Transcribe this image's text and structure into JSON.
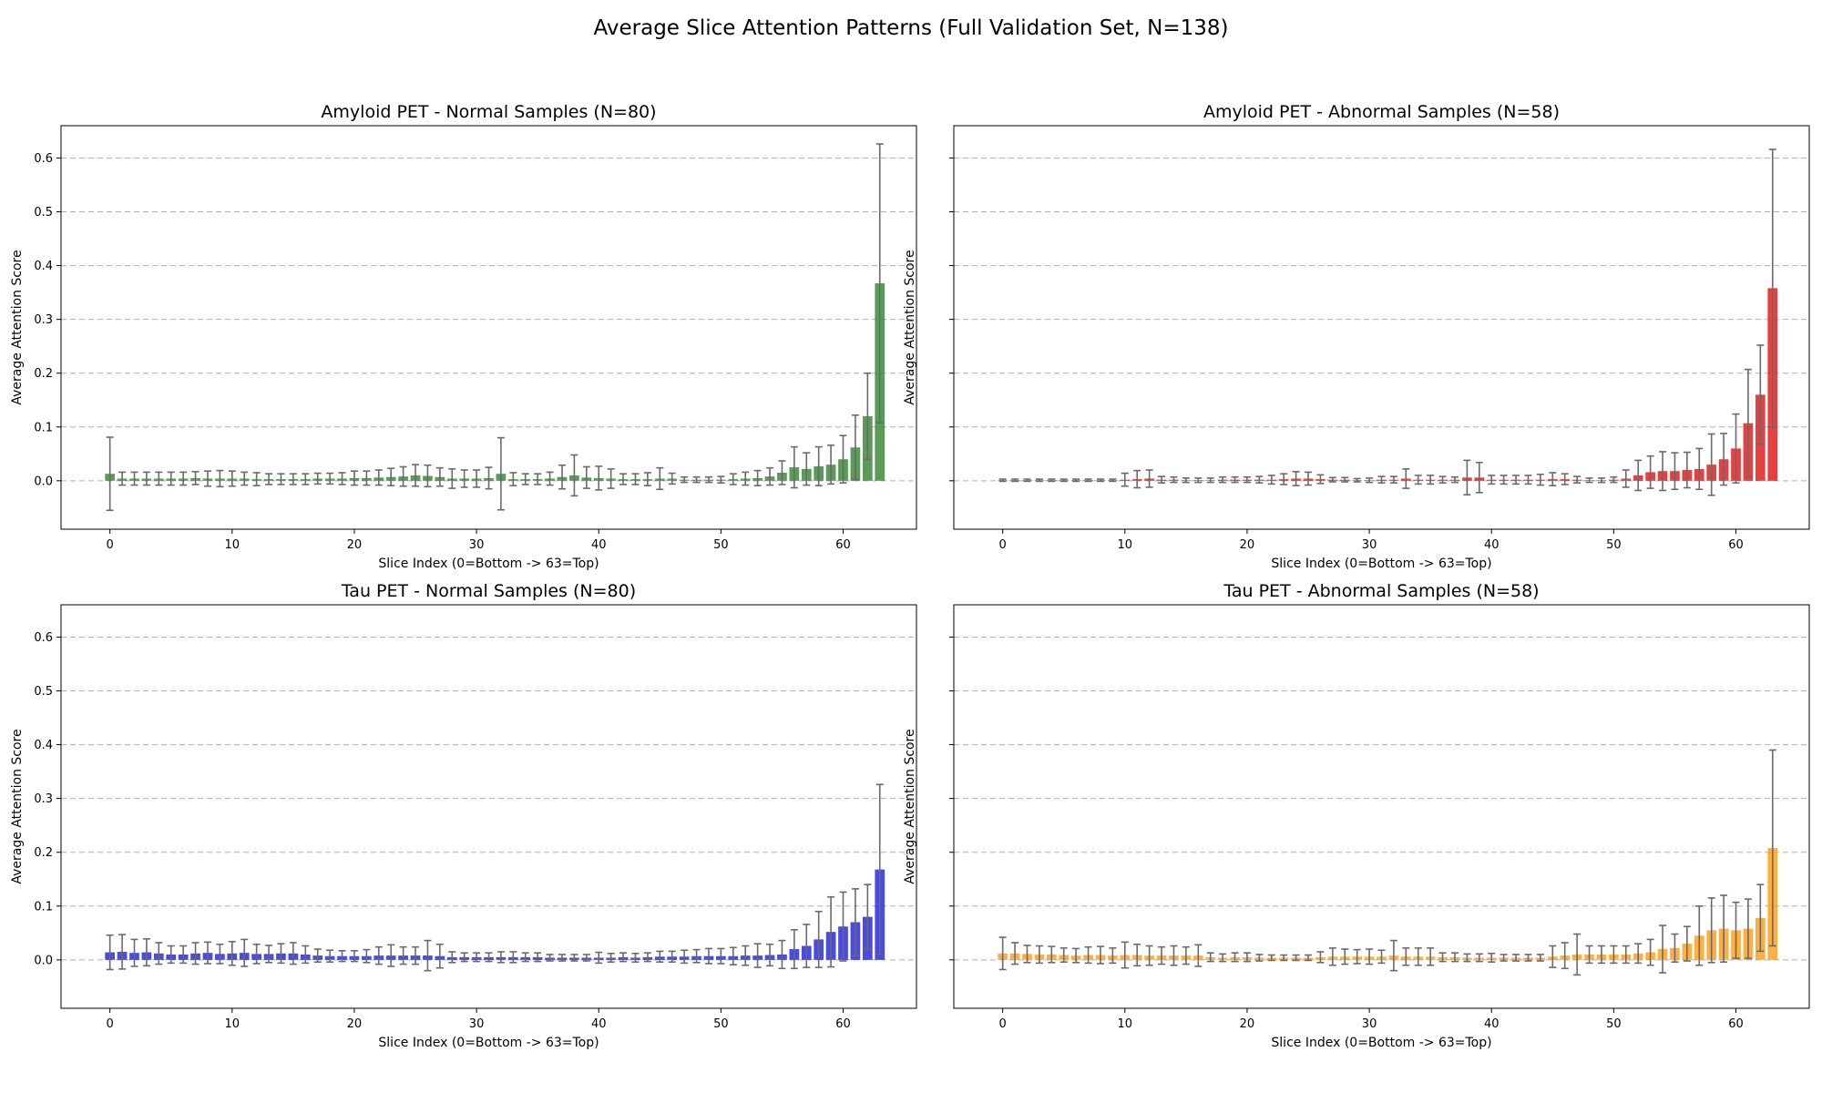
{
  "figure_title": "Average Slice Attention Patterns (Full Validation Set, N=138)",
  "chart_data": [
    {
      "type": "bar",
      "title": "Amyloid PET - Normal Samples (N=80)",
      "xlabel": "Slice Index (0=Bottom -> 63=Top)",
      "ylabel": "Average Attention Score",
      "color": "#3b8b3b",
      "xlim": [
        -4,
        66
      ],
      "ylim": [
        -0.09,
        0.66
      ],
      "xticks": [
        0,
        10,
        20,
        30,
        40,
        50,
        60
      ],
      "yticks": [
        0.0,
        0.1,
        0.2,
        0.3,
        0.4,
        0.5,
        0.6
      ],
      "grid": "y-dashed",
      "x": [
        0,
        1,
        2,
        3,
        4,
        5,
        6,
        7,
        8,
        9,
        10,
        11,
        12,
        13,
        14,
        15,
        16,
        17,
        18,
        19,
        20,
        21,
        22,
        23,
        24,
        25,
        26,
        27,
        28,
        29,
        30,
        31,
        32,
        33,
        34,
        35,
        36,
        37,
        38,
        39,
        40,
        41,
        42,
        43,
        44,
        45,
        46,
        47,
        48,
        49,
        50,
        51,
        52,
        53,
        54,
        55,
        56,
        57,
        58,
        59,
        60,
        61,
        62,
        63
      ],
      "values": [
        0.013,
        0.004,
        0.004,
        0.004,
        0.004,
        0.004,
        0.004,
        0.005,
        0.004,
        0.004,
        0.004,
        0.004,
        0.003,
        0.003,
        0.003,
        0.003,
        0.003,
        0.004,
        0.004,
        0.004,
        0.005,
        0.005,
        0.006,
        0.007,
        0.008,
        0.01,
        0.009,
        0.007,
        0.004,
        0.004,
        0.004,
        0.005,
        0.013,
        0.003,
        0.003,
        0.003,
        0.004,
        0.007,
        0.01,
        0.006,
        0.005,
        0.004,
        0.003,
        0.003,
        0.003,
        0.004,
        0.004,
        0.002,
        0.002,
        0.002,
        0.002,
        0.003,
        0.004,
        0.005,
        0.008,
        0.015,
        0.025,
        0.022,
        0.027,
        0.03,
        0.04,
        0.062,
        0.12,
        0.367
      ],
      "errors": [
        0.068,
        0.012,
        0.012,
        0.012,
        0.012,
        0.012,
        0.012,
        0.012,
        0.014,
        0.015,
        0.014,
        0.012,
        0.012,
        0.01,
        0.01,
        0.01,
        0.01,
        0.01,
        0.01,
        0.011,
        0.013,
        0.013,
        0.014,
        0.016,
        0.018,
        0.02,
        0.02,
        0.017,
        0.018,
        0.016,
        0.016,
        0.02,
        0.067,
        0.012,
        0.01,
        0.01,
        0.012,
        0.022,
        0.038,
        0.02,
        0.022,
        0.018,
        0.01,
        0.01,
        0.012,
        0.02,
        0.01,
        0.005,
        0.005,
        0.005,
        0.006,
        0.01,
        0.012,
        0.014,
        0.016,
        0.022,
        0.038,
        0.03,
        0.036,
        0.036,
        0.044,
        0.06,
        0.08,
        0.259
      ]
    },
    {
      "type": "bar",
      "title": "Amyloid PET - Abnormal Samples (N=58)",
      "xlabel": "Slice Index (0=Bottom -> 63=Top)",
      "ylabel": "Average Attention Score",
      "color": "#e02020",
      "xlim": [
        -4,
        66
      ],
      "ylim": [
        -0.09,
        0.66
      ],
      "xticks": [
        0,
        10,
        20,
        30,
        40,
        50,
        60
      ],
      "yticks": [
        0.0,
        0.1,
        0.2,
        0.3,
        0.4,
        0.5,
        0.6
      ],
      "grid": "y-dashed",
      "x": [
        0,
        1,
        2,
        3,
        4,
        5,
        6,
        7,
        8,
        9,
        10,
        11,
        12,
        13,
        14,
        15,
        16,
        17,
        18,
        19,
        20,
        21,
        22,
        23,
        24,
        25,
        26,
        27,
        28,
        29,
        30,
        31,
        32,
        33,
        34,
        35,
        36,
        37,
        38,
        39,
        40,
        41,
        42,
        43,
        44,
        45,
        46,
        47,
        48,
        49,
        50,
        51,
        52,
        53,
        54,
        55,
        56,
        57,
        58,
        59,
        60,
        61,
        62,
        63
      ],
      "values": [
        0.001,
        0.001,
        0.001,
        0.001,
        0.001,
        0.001,
        0.001,
        0.001,
        0.001,
        0.001,
        0.002,
        0.003,
        0.004,
        0.002,
        0.002,
        0.001,
        0.001,
        0.001,
        0.002,
        0.002,
        0.002,
        0.002,
        0.002,
        0.003,
        0.004,
        0.004,
        0.003,
        0.002,
        0.002,
        0.001,
        0.001,
        0.002,
        0.002,
        0.004,
        0.002,
        0.002,
        0.002,
        0.002,
        0.006,
        0.006,
        0.002,
        0.002,
        0.002,
        0.002,
        0.002,
        0.003,
        0.003,
        0.002,
        0.001,
        0.001,
        0.002,
        0.004,
        0.01,
        0.016,
        0.018,
        0.018,
        0.02,
        0.022,
        0.03,
        0.04,
        0.06,
        0.107,
        0.16,
        0.358
      ],
      "errors": [
        0.002,
        0.002,
        0.002,
        0.002,
        0.002,
        0.002,
        0.002,
        0.002,
        0.002,
        0.002,
        0.012,
        0.016,
        0.016,
        0.006,
        0.005,
        0.004,
        0.004,
        0.004,
        0.005,
        0.005,
        0.005,
        0.006,
        0.008,
        0.01,
        0.013,
        0.012,
        0.008,
        0.004,
        0.004,
        0.003,
        0.004,
        0.006,
        0.006,
        0.018,
        0.008,
        0.008,
        0.006,
        0.005,
        0.032,
        0.028,
        0.008,
        0.008,
        0.008,
        0.008,
        0.01,
        0.012,
        0.01,
        0.006,
        0.004,
        0.004,
        0.005,
        0.016,
        0.028,
        0.03,
        0.036,
        0.034,
        0.033,
        0.038,
        0.057,
        0.048,
        0.064,
        0.1,
        0.092,
        0.258
      ]
    },
    {
      "type": "bar",
      "title": "Tau PET - Normal Samples (N=80)",
      "xlabel": "Slice Index (0=Bottom -> 63=Top)",
      "ylabel": "Average Attention Score",
      "color": "#2a2ae0",
      "xlim": [
        -4,
        66
      ],
      "ylim": [
        -0.09,
        0.66
      ],
      "xticks": [
        0,
        10,
        20,
        30,
        40,
        50,
        60
      ],
      "yticks": [
        0.0,
        0.1,
        0.2,
        0.3,
        0.4,
        0.5,
        0.6
      ],
      "grid": "y-dashed",
      "x": [
        0,
        1,
        2,
        3,
        4,
        5,
        6,
        7,
        8,
        9,
        10,
        11,
        12,
        13,
        14,
        15,
        16,
        17,
        18,
        19,
        20,
        21,
        22,
        23,
        24,
        25,
        26,
        27,
        28,
        29,
        30,
        31,
        32,
        33,
        34,
        35,
        36,
        37,
        38,
        39,
        40,
        41,
        42,
        43,
        44,
        45,
        46,
        47,
        48,
        49,
        50,
        51,
        52,
        53,
        54,
        55,
        56,
        57,
        58,
        59,
        60,
        61,
        62,
        63
      ],
      "values": [
        0.014,
        0.015,
        0.013,
        0.014,
        0.012,
        0.01,
        0.01,
        0.012,
        0.013,
        0.011,
        0.012,
        0.013,
        0.011,
        0.011,
        0.012,
        0.012,
        0.01,
        0.008,
        0.007,
        0.007,
        0.007,
        0.007,
        0.008,
        0.008,
        0.008,
        0.008,
        0.008,
        0.007,
        0.005,
        0.005,
        0.005,
        0.005,
        0.005,
        0.005,
        0.005,
        0.005,
        0.004,
        0.004,
        0.004,
        0.004,
        0.004,
        0.004,
        0.005,
        0.004,
        0.005,
        0.006,
        0.006,
        0.006,
        0.007,
        0.007,
        0.007,
        0.007,
        0.008,
        0.008,
        0.009,
        0.01,
        0.02,
        0.026,
        0.038,
        0.052,
        0.062,
        0.07,
        0.08,
        0.168
      ],
      "errors": [
        0.032,
        0.032,
        0.025,
        0.025,
        0.02,
        0.016,
        0.016,
        0.02,
        0.02,
        0.018,
        0.022,
        0.025,
        0.018,
        0.016,
        0.018,
        0.02,
        0.016,
        0.012,
        0.011,
        0.01,
        0.01,
        0.012,
        0.016,
        0.02,
        0.016,
        0.016,
        0.028,
        0.022,
        0.01,
        0.008,
        0.008,
        0.008,
        0.01,
        0.01,
        0.008,
        0.008,
        0.006,
        0.006,
        0.006,
        0.006,
        0.01,
        0.008,
        0.008,
        0.008,
        0.008,
        0.01,
        0.01,
        0.012,
        0.012,
        0.014,
        0.014,
        0.016,
        0.018,
        0.022,
        0.02,
        0.026,
        0.036,
        0.04,
        0.052,
        0.065,
        0.064,
        0.062,
        0.06,
        0.158
      ]
    },
    {
      "type": "bar",
      "title": "Tau PET - Abnormal Samples (N=58)",
      "xlabel": "Slice Index (0=Bottom -> 63=Top)",
      "ylabel": "Average Attention Score",
      "color": "#ffa01e",
      "xlim": [
        -4,
        66
      ],
      "ylim": [
        -0.09,
        0.66
      ],
      "xticks": [
        0,
        10,
        20,
        30,
        40,
        50,
        60
      ],
      "yticks": [
        0.0,
        0.1,
        0.2,
        0.3,
        0.4,
        0.5,
        0.6
      ],
      "grid": "y-dashed",
      "x": [
        0,
        1,
        2,
        3,
        4,
        5,
        6,
        7,
        8,
        9,
        10,
        11,
        12,
        13,
        14,
        15,
        16,
        17,
        18,
        19,
        20,
        21,
        22,
        23,
        24,
        25,
        26,
        27,
        28,
        29,
        30,
        31,
        32,
        33,
        34,
        35,
        36,
        37,
        38,
        39,
        40,
        41,
        42,
        43,
        44,
        45,
        46,
        47,
        48,
        49,
        50,
        51,
        52,
        53,
        54,
        55,
        56,
        57,
        58,
        59,
        60,
        61,
        62,
        63
      ],
      "values": [
        0.012,
        0.012,
        0.011,
        0.01,
        0.01,
        0.009,
        0.008,
        0.009,
        0.009,
        0.008,
        0.009,
        0.009,
        0.008,
        0.008,
        0.008,
        0.008,
        0.008,
        0.005,
        0.004,
        0.005,
        0.005,
        0.004,
        0.004,
        0.004,
        0.004,
        0.004,
        0.005,
        0.006,
        0.006,
        0.006,
        0.006,
        0.006,
        0.008,
        0.006,
        0.006,
        0.006,
        0.005,
        0.005,
        0.004,
        0.004,
        0.004,
        0.004,
        0.004,
        0.004,
        0.004,
        0.006,
        0.008,
        0.01,
        0.01,
        0.01,
        0.01,
        0.01,
        0.012,
        0.014,
        0.02,
        0.022,
        0.03,
        0.045,
        0.055,
        0.058,
        0.055,
        0.058,
        0.078,
        0.208
      ],
      "errors": [
        0.03,
        0.02,
        0.016,
        0.016,
        0.015,
        0.013,
        0.013,
        0.015,
        0.016,
        0.014,
        0.024,
        0.02,
        0.018,
        0.016,
        0.018,
        0.016,
        0.02,
        0.008,
        0.007,
        0.008,
        0.008,
        0.006,
        0.005,
        0.005,
        0.005,
        0.005,
        0.01,
        0.016,
        0.014,
        0.013,
        0.014,
        0.012,
        0.028,
        0.016,
        0.016,
        0.016,
        0.008,
        0.008,
        0.007,
        0.007,
        0.008,
        0.006,
        0.006,
        0.006,
        0.006,
        0.02,
        0.024,
        0.038,
        0.016,
        0.016,
        0.016,
        0.016,
        0.018,
        0.024,
        0.044,
        0.026,
        0.032,
        0.055,
        0.06,
        0.062,
        0.052,
        0.055,
        0.062,
        0.182
      ]
    }
  ]
}
